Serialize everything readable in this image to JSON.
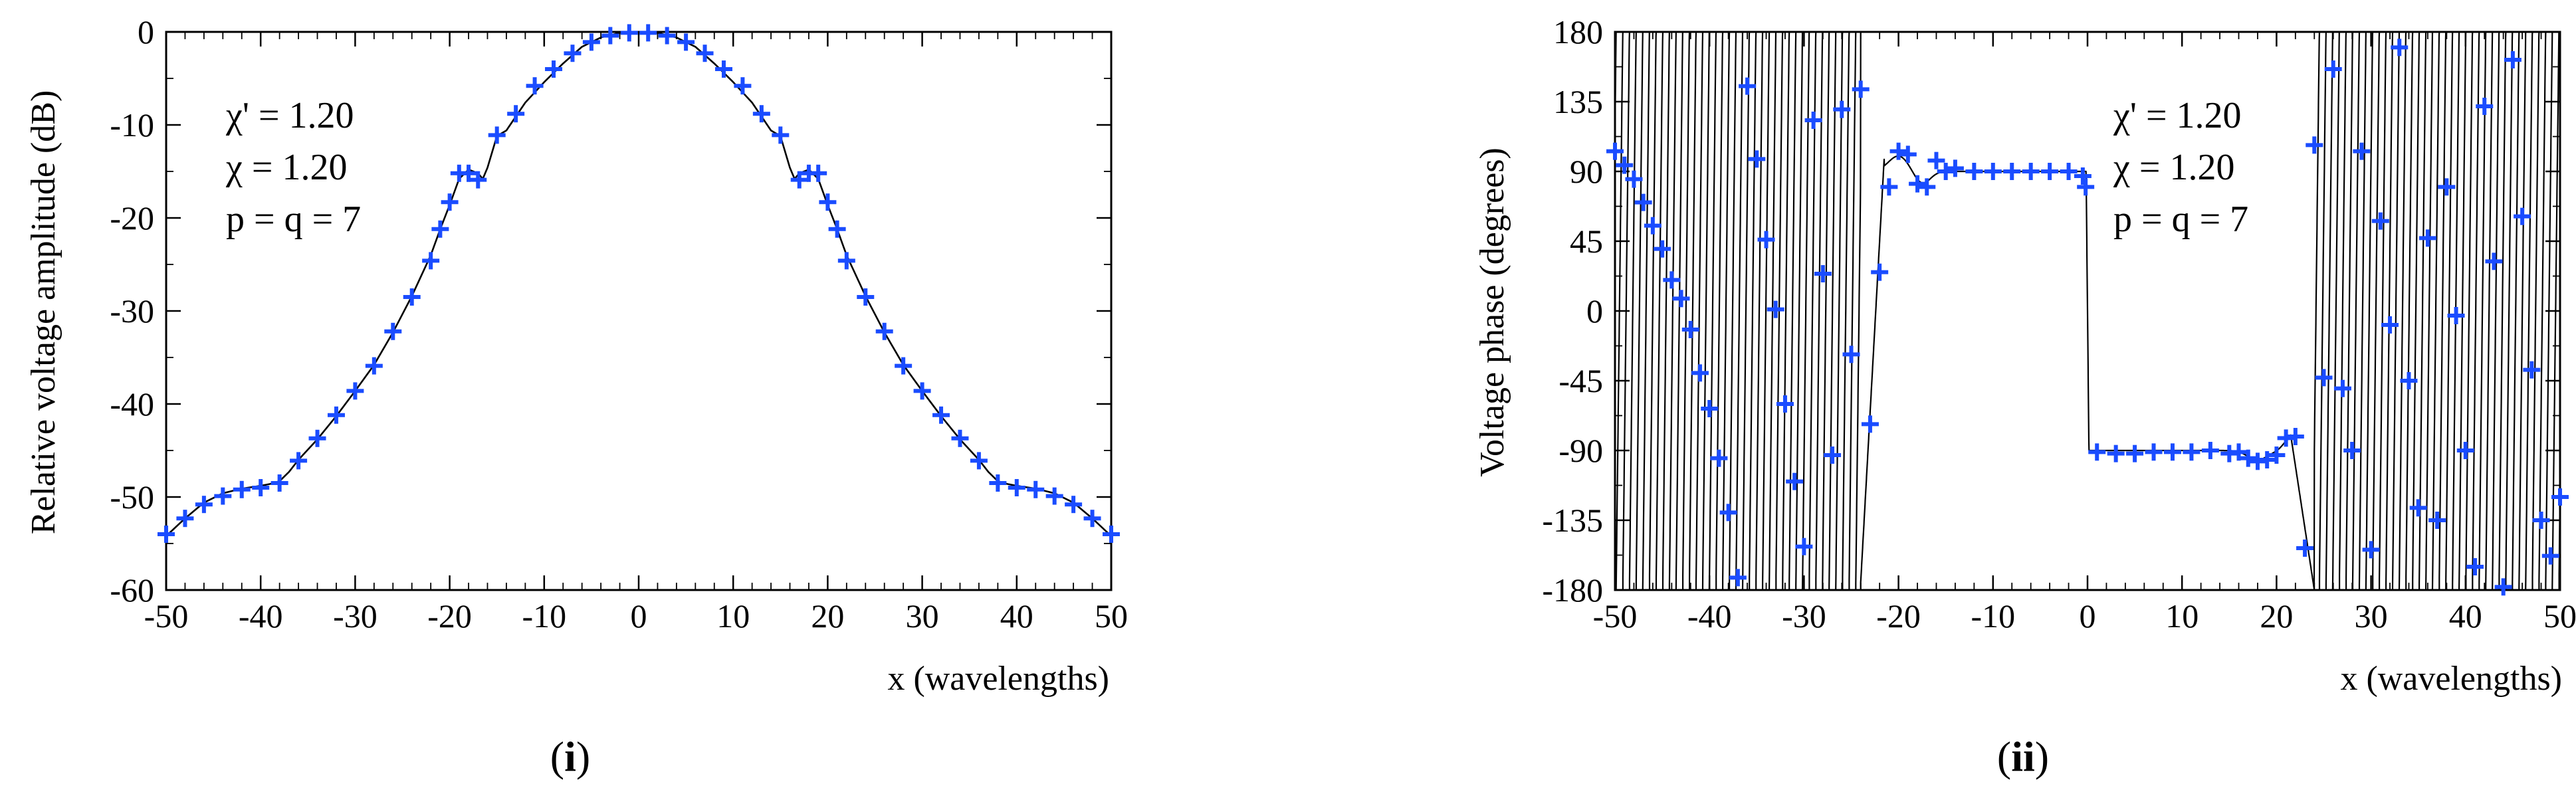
{
  "chart_data": [
    {
      "id": "amplitude",
      "type": "line",
      "caption": "(i)",
      "caption_letter": "i",
      "xlabel": "x (wavelengths)",
      "ylabel": "Relative voltage amplitude (dB)",
      "xlim": [
        -50,
        50
      ],
      "ylim": [
        -60,
        0
      ],
      "xticks": [
        -50,
        -40,
        -30,
        -20,
        -10,
        0,
        10,
        20,
        30,
        40,
        50
      ],
      "yticks": [
        0,
        -10,
        -20,
        -30,
        -40,
        -50,
        -60
      ],
      "annotations": [
        "χ' = 1.20",
        "χ = 1.20",
        "p = q = 7"
      ],
      "legend": "none",
      "curve_color": "#000000",
      "marker_color": "#1a4cff",
      "series": [
        {
          "name": "curve",
          "style": "line",
          "x": [
            -50,
            -48,
            -46,
            -44,
            -42,
            -40,
            -39,
            -38,
            -37,
            -36,
            -34,
            -32,
            -30,
            -28,
            -26,
            -24,
            -22,
            -21,
            -20,
            -19,
            -18,
            -17,
            -16.5,
            -16,
            -15,
            -14,
            -12,
            -10,
            -8,
            -6,
            -4,
            -2,
            0,
            2,
            4,
            6,
            8,
            10,
            12,
            14,
            15,
            16,
            16.5,
            17,
            18,
            19,
            20,
            21,
            22,
            24,
            26,
            28,
            30,
            32,
            34,
            36,
            37,
            38,
            39,
            40,
            42,
            44,
            46,
            48,
            50
          ],
          "y": [
            -54.2,
            -52.3,
            -50.6,
            -49.6,
            -49.1,
            -48.8,
            -48.6,
            -48.3,
            -47.3,
            -46,
            -43.8,
            -41.3,
            -38.6,
            -35.8,
            -32.3,
            -28.4,
            -24,
            -21.2,
            -18.6,
            -15.8,
            -14.8,
            -15.2,
            -15.8,
            -14.6,
            -11.2,
            -10.6,
            -7.6,
            -5.4,
            -3.4,
            -1.6,
            -0.6,
            -0.1,
            0,
            -0.1,
            -0.6,
            -1.6,
            -3.4,
            -5.4,
            -7.6,
            -10.6,
            -11.2,
            -14.6,
            -15.8,
            -15.2,
            -14.8,
            -15.8,
            -18.6,
            -21.2,
            -24,
            -28.4,
            -32.3,
            -35.8,
            -38.6,
            -41.3,
            -43.8,
            -46,
            -47.3,
            -48.3,
            -48.6,
            -48.8,
            -49.1,
            -49.6,
            -50.6,
            -52.3,
            -54.2
          ]
        },
        {
          "name": "samples",
          "style": "plus-markers",
          "x": [
            -50,
            -48,
            -46,
            -44,
            -42,
            -40,
            -38,
            -36,
            -34,
            -32,
            -30,
            -28,
            -26,
            -24,
            -22,
            -21,
            -20,
            -19,
            -18,
            -17,
            -15,
            -13,
            -11,
            -9,
            -7,
            -5,
            -3,
            -1,
            1,
            3,
            5,
            7,
            9,
            11,
            13,
            15,
            17,
            18,
            19,
            20,
            21,
            22,
            24,
            26,
            28,
            30,
            32,
            34,
            36,
            38,
            40,
            42,
            44,
            46,
            48,
            50
          ],
          "y": [
            -54,
            -52.3,
            -50.8,
            -49.9,
            -49.2,
            -49,
            -48.5,
            -46.1,
            -43.7,
            -41.2,
            -38.6,
            -35.9,
            -32.2,
            -28.5,
            -24.6,
            -21.2,
            -18.3,
            -15.2,
            -15.2,
            -15.9,
            -11.1,
            -8.8,
            -5.8,
            -4,
            -2.3,
            -1.1,
            -0.4,
            -0.1,
            -0.1,
            -0.4,
            -1.1,
            -2.3,
            -4,
            -5.8,
            -8.8,
            -11.1,
            -15.9,
            -15.2,
            -15.2,
            -18.3,
            -21.2,
            -24.6,
            -28.5,
            -32.2,
            -35.9,
            -38.6,
            -41.2,
            -43.7,
            -46.1,
            -48.5,
            -49,
            -49.2,
            -49.9,
            -50.8,
            -52.3,
            -54
          ]
        }
      ]
    },
    {
      "id": "phase",
      "type": "line",
      "caption": "(ii)",
      "caption_letter": "ii",
      "xlabel": "x (wavelengths)",
      "ylabel": "Voltage phase (degrees)",
      "xlim": [
        -50,
        50
      ],
      "ylim": [
        -180,
        180
      ],
      "xticks": [
        -50,
        -40,
        -30,
        -20,
        -10,
        0,
        10,
        20,
        30,
        40,
        50
      ],
      "yticks": [
        180,
        135,
        90,
        45,
        0,
        -45,
        -90,
        -135,
        -180
      ],
      "annotations": [
        "χ' = 1.20",
        "χ = 1.20",
        "p = q = 7"
      ],
      "legend": "none",
      "curve_color": "#000000",
      "marker_color": "#1a4cff",
      "curve_description": "phase wraps rapidly between -180 and 180 for |x| > 24 (about 1.4 wraps per wavelength); +90 plateau for -24 < x < 0; -90 plateau for 0 < x < 24",
      "series": [
        {
          "name": "samples",
          "style": "plus-markers",
          "x": [
            -50,
            -49,
            -48,
            -47,
            -46,
            -45,
            -44,
            -43,
            -42,
            -41,
            -40,
            -39,
            -38,
            -37,
            -36,
            -35,
            -34,
            -33,
            -32,
            -31,
            -30,
            -29,
            -28,
            -27,
            -26,
            -25,
            -24,
            -23,
            -22,
            -21,
            -20,
            -19,
            -18,
            -17,
            -16,
            -15,
            -14,
            -12,
            -10,
            -8,
            -6,
            -4,
            -2,
            -0.5,
            -0.2,
            1,
            3,
            5,
            7,
            9,
            11,
            13,
            15,
            16,
            17,
            18,
            19,
            20,
            21,
            22,
            23,
            24,
            25,
            26,
            27,
            28,
            29,
            30,
            31,
            32,
            33,
            34,
            35,
            36,
            37,
            38,
            39,
            40,
            41,
            42,
            43,
            44,
            45,
            46,
            47,
            48,
            49,
            50
          ],
          "y": [
            103,
            94,
            85,
            70,
            55,
            40,
            20,
            8,
            -12,
            -40,
            -63,
            -95,
            -130,
            -172,
            145,
            98,
            46,
            1,
            -60,
            -110,
            -152,
            123,
            24,
            -93,
            130,
            -28,
            143,
            -73,
            25,
            80,
            103,
            101,
            82,
            80,
            97,
            90,
            92,
            90,
            90,
            90,
            90,
            90,
            90,
            87,
            80,
            -91,
            -92,
            -92,
            -91,
            -91,
            -91,
            -90,
            -92,
            -91,
            -95,
            -97,
            -96,
            -93,
            -82,
            -81,
            -153,
            107,
            -43,
            156,
            -50,
            -90,
            103,
            -154,
            58,
            -9,
            170,
            -45,
            -127,
            47,
            -135,
            80,
            -3,
            -90,
            -165,
            132,
            32,
            -178,
            162,
            61,
            -38,
            -135,
            -158,
            -120
          ]
        }
      ]
    }
  ]
}
